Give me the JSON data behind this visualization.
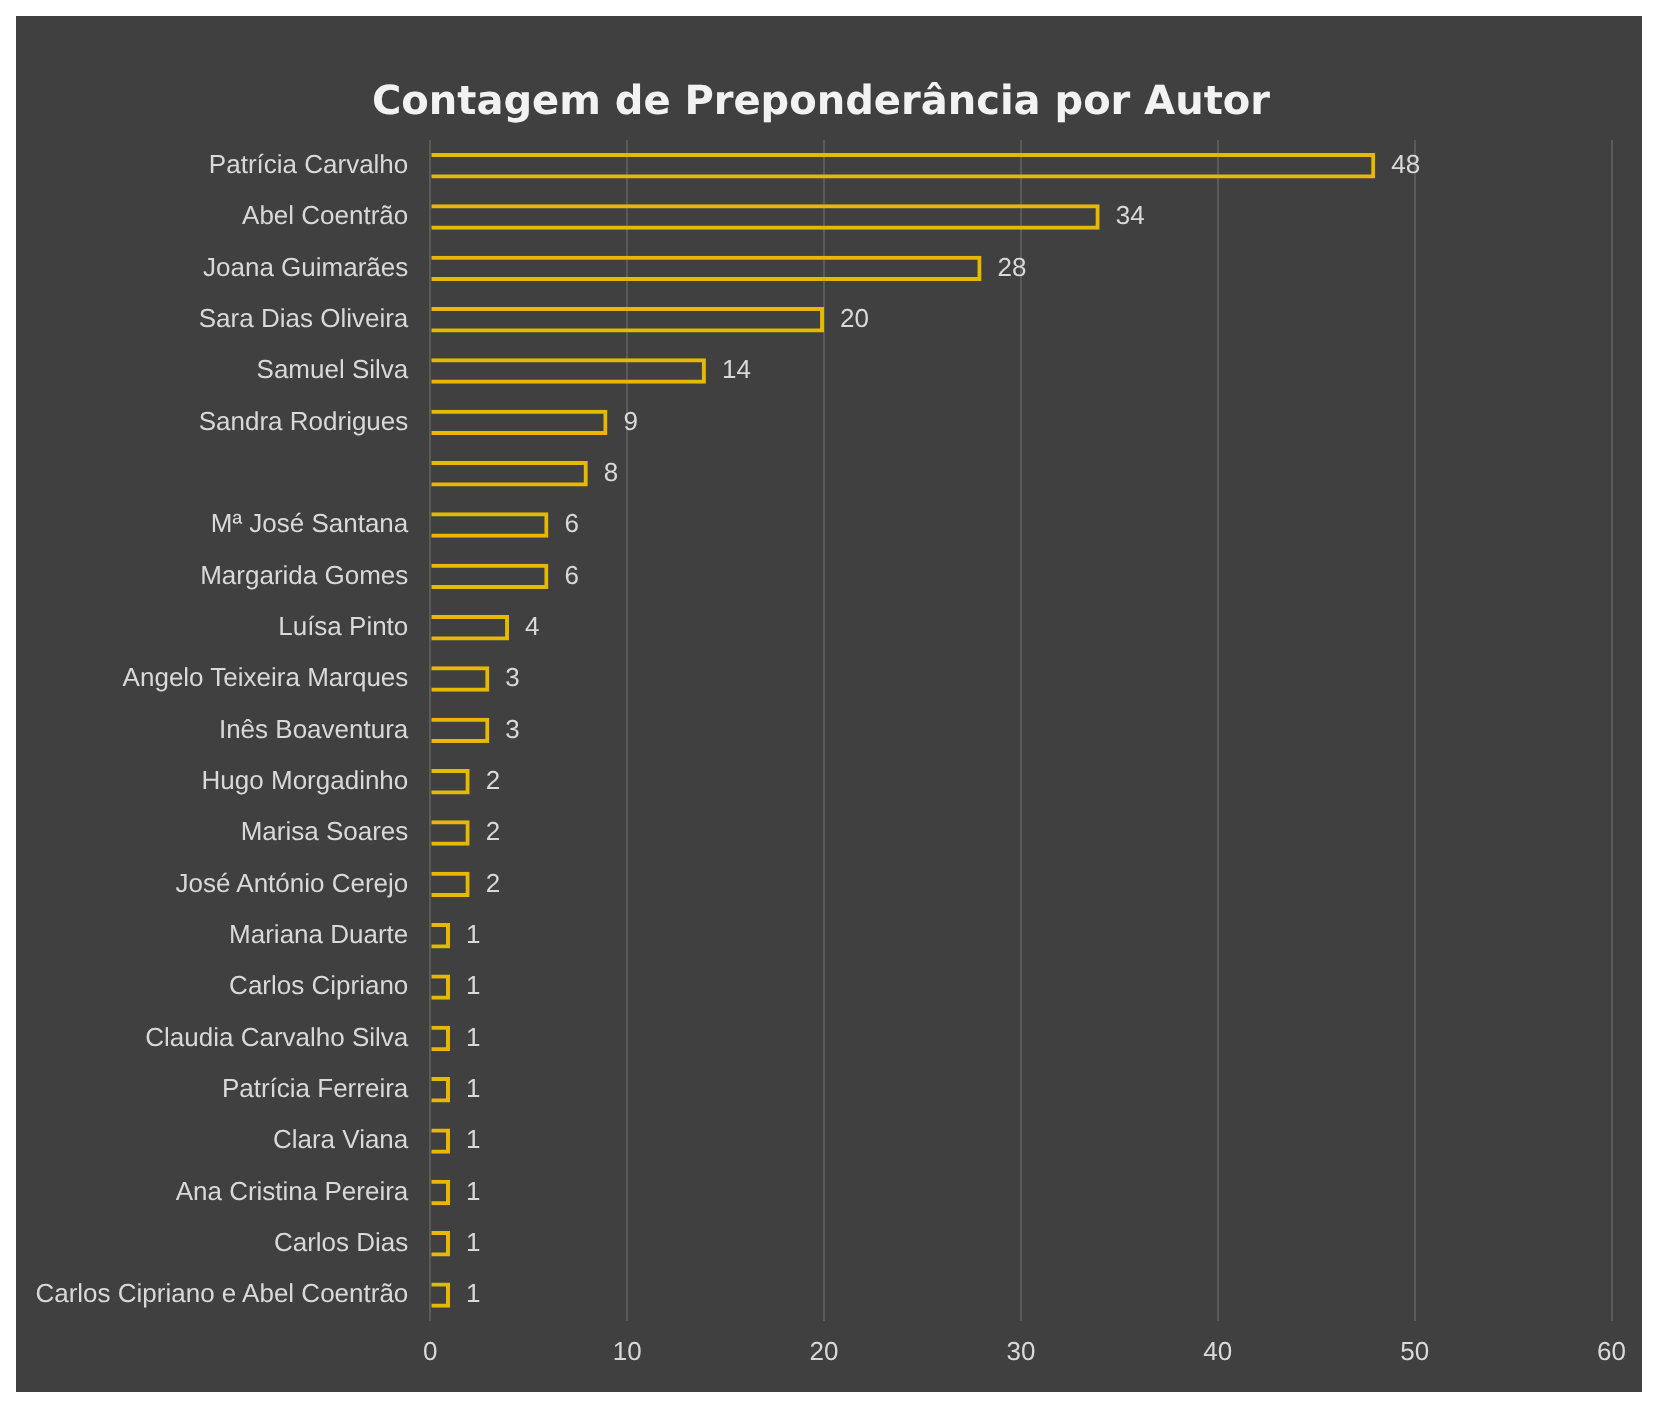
{
  "chart_data": {
    "type": "bar",
    "orientation": "horizontal",
    "title": "Contagem de Preponderância por Autor",
    "categories": [
      "Patrícia Carvalho",
      "Abel Coentrão",
      "Joana Guimarães",
      "Sara Dias Oliveira",
      "Samuel Silva",
      "Sandra Rodrigues",
      null,
      "Mª José Santana",
      "Margarida Gomes",
      "Luísa Pinto",
      "Angelo Teixeira Marques",
      "Inês Boaventura",
      "Hugo Morgadinho",
      "Marisa Soares",
      "José António Cerejo",
      "Mariana Duarte",
      "Carlos Cipriano",
      "Claudia Carvalho Silva",
      "Patrícia Ferreira",
      "Clara Viana",
      "Ana Cristina Pereira",
      "Carlos Dias",
      "Carlos Cipriano e Abel Coentrão"
    ],
    "values": [
      48,
      34,
      28,
      20,
      14,
      9,
      8,
      6,
      6,
      4,
      3,
      3,
      2,
      2,
      2,
      1,
      1,
      1,
      1,
      1,
      1,
      1,
      1
    ],
    "color": "#e6b800",
    "xlim": [
      0,
      60
    ],
    "xticks": [
      0,
      10,
      20,
      30,
      40,
      50,
      60
    ],
    "grid": "x",
    "data_labels": true
  }
}
